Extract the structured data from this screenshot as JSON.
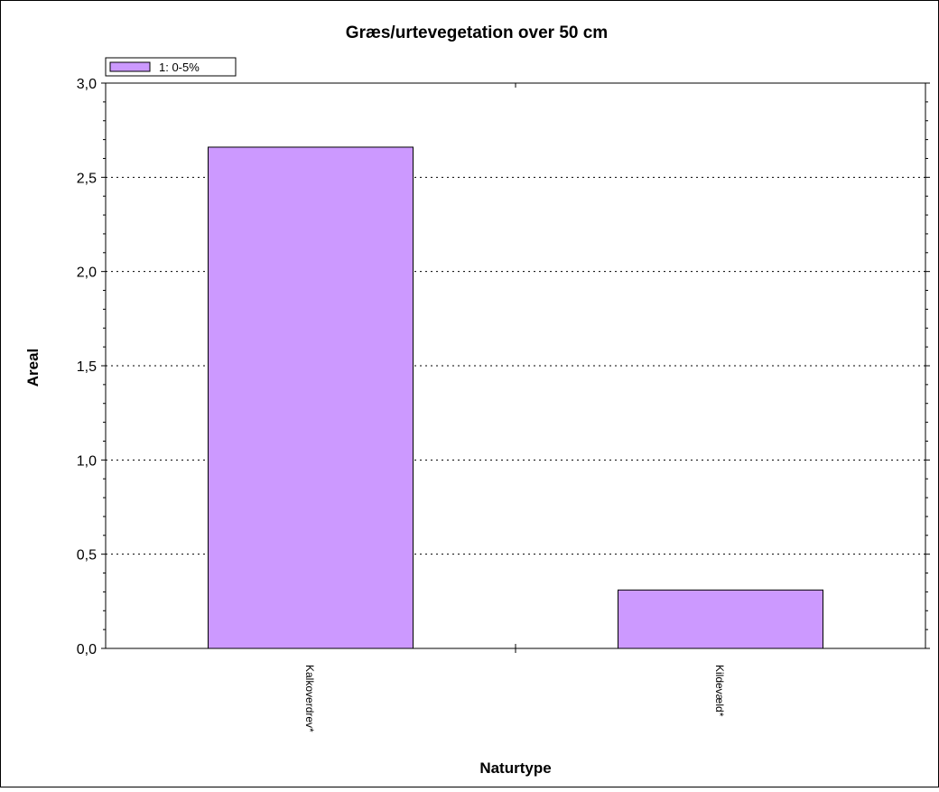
{
  "chart_data": {
    "type": "bar",
    "title": "Græs/urtevegetation over 50 cm",
    "xlabel": "Naturtype",
    "ylabel": "Areal",
    "categories": [
      "Kalkoverdrev*",
      "Kildevæld*"
    ],
    "series": [
      {
        "name": "1: 0-5%",
        "values": [
          2.66,
          0.31
        ]
      }
    ],
    "ylim": [
      0,
      3
    ],
    "y_ticks": [
      "0,0",
      "0,5",
      "1,0",
      "1,5",
      "2,0",
      "2,5",
      "3,0"
    ],
    "grid": true,
    "legend_position": "top-left",
    "colors": {
      "bar_fill": "#cc99ff",
      "bar_stroke": "#000000",
      "grid": "#000000"
    }
  }
}
